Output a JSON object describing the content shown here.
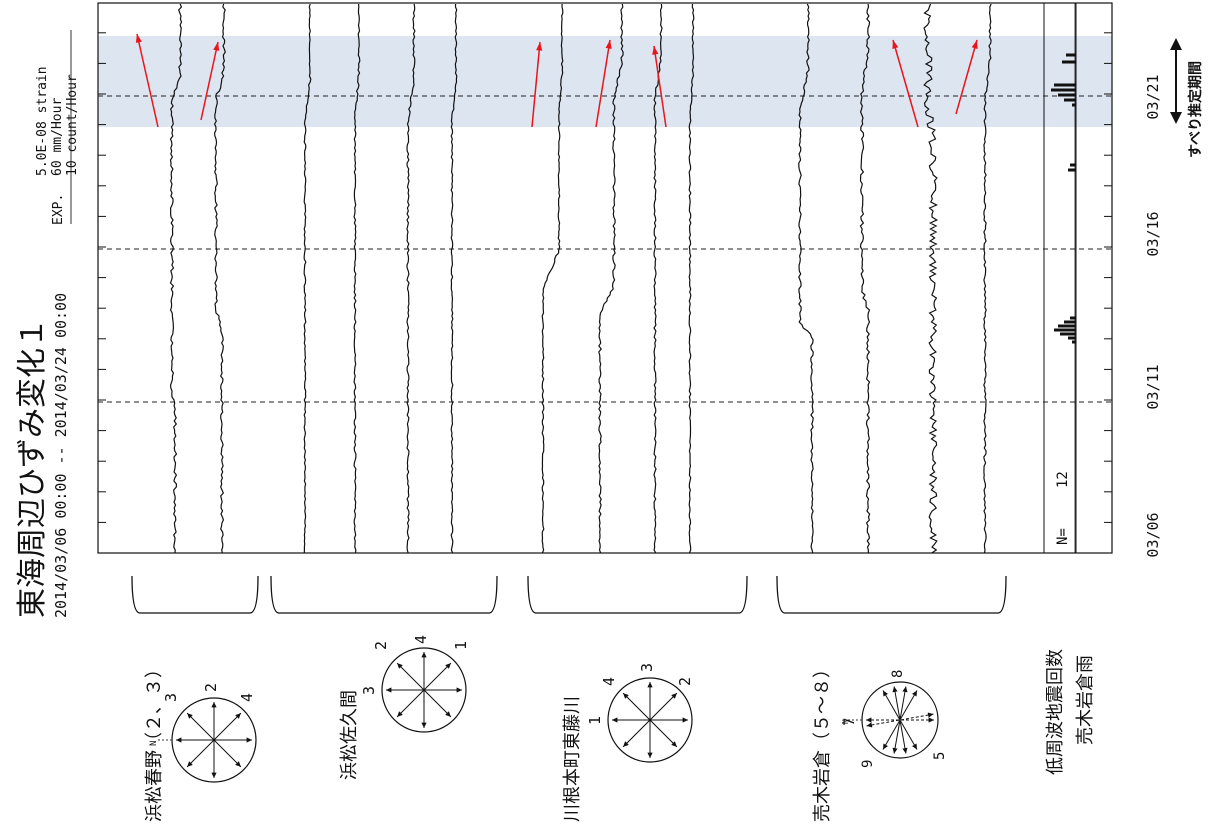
{
  "title": "東海周辺ひずみ変化１",
  "period": "2014/03/06 00:00 -- 2014/03/24 00:00",
  "exp": {
    "label": "EXP.",
    "strain": "5.0E-08 strain",
    "rain": "60 mm/Hour",
    "count": "10 count/Hour"
  },
  "colors": {
    "trace": "#111111",
    "shade": "#dde5f1",
    "arrow": "#e8161c"
  },
  "chart_data": {
    "type": "line",
    "time_ticks": [
      "03/06",
      "03/11",
      "03/16",
      "03/21"
    ],
    "time_range": [
      "2014/03/06 00:00",
      "2014/03/24 00:00"
    ],
    "slip_period_label": "すべり推定期間",
    "low_freq_count_label": "N=",
    "low_freq_count": "12",
    "groups": [
      {
        "name": "浜松春野（２、３）",
        "components": [
          "2",
          "3"
        ],
        "rose_labels": [
          "3",
          "2",
          "4",
          "N"
        ]
      },
      {
        "name": "浜松佐久間",
        "components": [
          "1",
          "2",
          "3",
          "4"
        ],
        "rose_labels": [
          "2",
          "4",
          "1",
          "3"
        ]
      },
      {
        "name": "川根本町東藤川",
        "components": [
          "1",
          "2",
          "3",
          "4"
        ],
        "rose_labels": [
          "4",
          "3",
          "2",
          "1"
        ]
      },
      {
        "name": "売木岩倉（５～８）",
        "components": [
          "5",
          "6",
          "7",
          "8"
        ],
        "rose_labels": [
          "8",
          "7",
          "9",
          "5",
          "N"
        ]
      }
    ],
    "side_labels": [
      "低周波地震回数",
      "売木岩倉雨"
    ]
  }
}
